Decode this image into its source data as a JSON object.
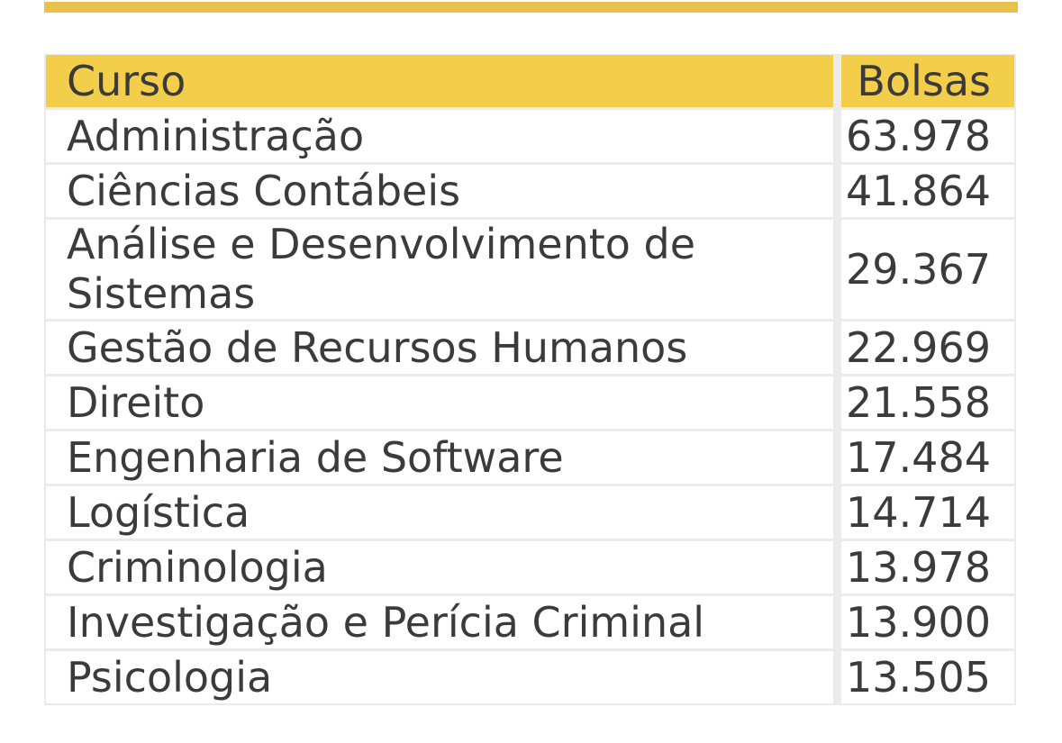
{
  "colors": {
    "accent_bar": "#E9C14D",
    "header_background": "#F2CE4B",
    "row_background": "#FFFFFF",
    "gridline": "#EBEBEB",
    "text": "#3B3B3B"
  },
  "table": {
    "header": {
      "curso": "Curso",
      "bolsas": "Bolsas"
    },
    "rows": [
      {
        "curso": "Administração",
        "bolsas": "63.978"
      },
      {
        "curso": "Ciências Contábeis",
        "bolsas": "41.864"
      },
      {
        "curso": "Análise e Desenvolvimento de Sistemas",
        "bolsas": "29.367"
      },
      {
        "curso": "Gestão de Recursos Humanos",
        "bolsas": "22.969"
      },
      {
        "curso": "Direito",
        "bolsas": "21.558"
      },
      {
        "curso": "Engenharia de Software",
        "bolsas": "17.484"
      },
      {
        "curso": "Logística",
        "bolsas": "14.714"
      },
      {
        "curso": "Criminologia",
        "bolsas": "13.978"
      },
      {
        "curso": "Investigação e Perícia Criminal",
        "bolsas": "13.900"
      },
      {
        "curso": "Psicologia",
        "bolsas": "13.505"
      }
    ]
  },
  "chart_data": {
    "type": "table",
    "columns": [
      "Curso",
      "Bolsas"
    ],
    "categories": [
      "Administração",
      "Ciências Contábeis",
      "Análise e Desenvolvimento de Sistemas",
      "Gestão de Recursos Humanos",
      "Direito",
      "Engenharia de Software",
      "Logística",
      "Criminologia",
      "Investigação e Perícia Criminal",
      "Psicologia"
    ],
    "values": [
      63978,
      41864,
      29367,
      22969,
      21558,
      17484,
      14714,
      13978,
      13900,
      13505
    ],
    "value_labels": [
      "63.978",
      "41.864",
      "29.367",
      "22.969",
      "21.558",
      "17.484",
      "14.714",
      "13.978",
      "13.900",
      "13.505"
    ],
    "title": "",
    "xlabel": "Curso",
    "ylabel": "Bolsas"
  }
}
